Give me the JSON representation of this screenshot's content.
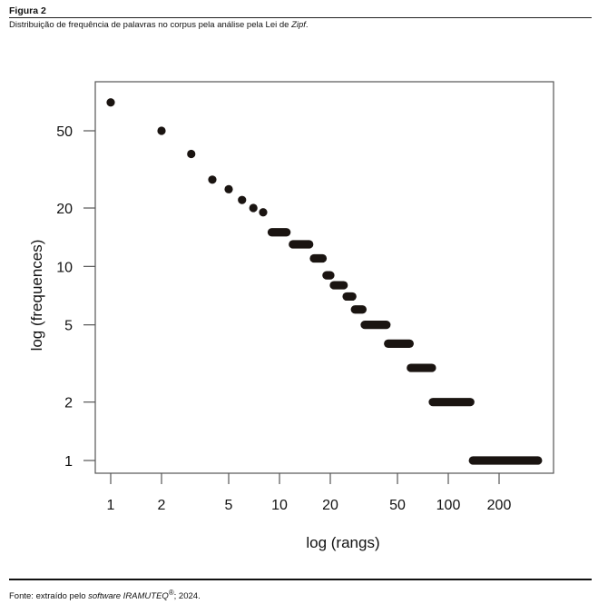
{
  "figure": {
    "label": "Figura 2",
    "caption_prefix": "Distribuição de frequência de palavras no corpus pela análise pela Lei de ",
    "caption_em": "Zipf",
    "caption_suffix": ".",
    "footer_prefix": "Fonte: extraído pelo ",
    "footer_em1": "software IRAMUTEQ",
    "footer_sup": "®",
    "footer_suffix": "; 2024."
  },
  "chart_data": {
    "type": "scatter",
    "xscale": "log",
    "yscale": "log",
    "xlabel": "log (rangs)",
    "ylabel": "log (frequences)",
    "xlim": [
      0.85,
      420
    ],
    "ylim": [
      0.9,
      90
    ],
    "xticks": [
      1,
      2,
      5,
      10,
      20,
      50,
      100,
      200
    ],
    "yticks": [
      1,
      2,
      5,
      10,
      20,
      50
    ],
    "point_color": "#1a1411",
    "grid": false,
    "points": [
      {
        "rank": 1,
        "freq": 70
      },
      {
        "rank": 2,
        "freq": 50
      },
      {
        "rank": 3,
        "freq": 38
      },
      {
        "rank": 4,
        "freq": 28
      },
      {
        "rank": 5,
        "freq": 25
      },
      {
        "rank": 6,
        "freq": 22
      },
      {
        "rank": 7,
        "freq": 20
      },
      {
        "rank": 8,
        "freq": 19
      }
    ],
    "runs": [
      {
        "freq": 15,
        "rank_start": 9,
        "rank_end": 11
      },
      {
        "freq": 13,
        "rank_start": 12,
        "rank_end": 15
      },
      {
        "freq": 11,
        "rank_start": 16,
        "rank_end": 18
      },
      {
        "freq": 9,
        "rank_start": 19,
        "rank_end": 20
      },
      {
        "freq": 8,
        "rank_start": 21,
        "rank_end": 24
      },
      {
        "freq": 7,
        "rank_start": 25,
        "rank_end": 27
      },
      {
        "freq": 6,
        "rank_start": 28,
        "rank_end": 31
      },
      {
        "freq": 5,
        "rank_start": 32,
        "rank_end": 43
      },
      {
        "freq": 4,
        "rank_start": 44,
        "rank_end": 59
      },
      {
        "freq": 3,
        "rank_start": 60,
        "rank_end": 80
      },
      {
        "freq": 2,
        "rank_start": 81,
        "rank_end": 135
      },
      {
        "freq": 1,
        "rank_start": 140,
        "rank_end": 340
      }
    ]
  }
}
